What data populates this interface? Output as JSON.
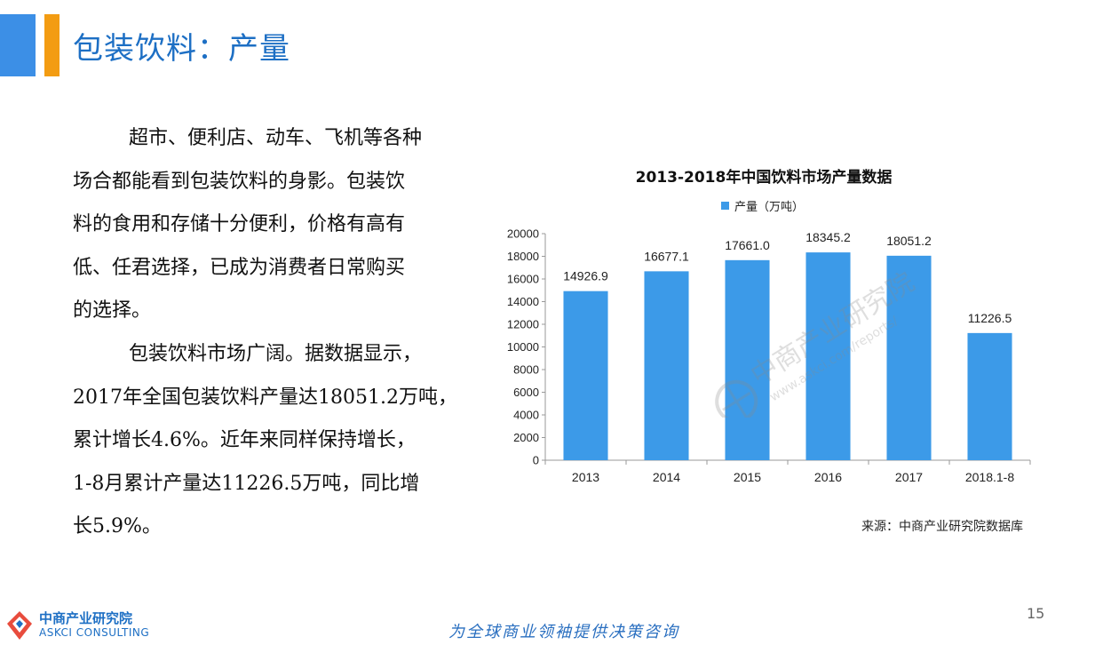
{
  "header": {
    "title": "包装饮料：产量"
  },
  "body": {
    "paragraph1_lines": [
      "超市、便利店、动车、飞机等各种",
      "场合都能看到包装饮料的身影。包装饮",
      "料的食用和存储十分便利，价格有高有",
      "低、任君选择，已成为消费者日常购买",
      "的选择。"
    ],
    "paragraph2_lines": [
      "包装饮料市场广阔。据数据显示，",
      "2017年全国包装饮料产量达18051.2万吨，",
      "累计增长4.6%。近年来同样保持增长，",
      "1-8月累计产量达11226.5万吨，同比增",
      "长5.9%。"
    ]
  },
  "chart_data": {
    "type": "bar",
    "title": "2013-2018年中国饮料市场产量数据",
    "categories": [
      "2013",
      "2014",
      "2015",
      "2016",
      "2017",
      "2018.1-8"
    ],
    "series": [
      {
        "name": "产量（万吨）",
        "values": [
          14926.9,
          16677.1,
          17661.0,
          18345.2,
          18051.2,
          11226.5
        ],
        "labels": [
          "14926.9",
          "16677.1",
          "17661.0",
          "18345.2",
          "18051.2",
          "11226.5"
        ]
      }
    ],
    "ylim": [
      0,
      20000
    ],
    "yticks": [
      0,
      2000,
      4000,
      6000,
      8000,
      10000,
      12000,
      14000,
      16000,
      18000,
      20000
    ],
    "legend": "top",
    "grid": false,
    "bar_color": "#3c9ae8"
  },
  "source": "来源：中商产业研究院数据库",
  "footer": {
    "page_number": "15",
    "slogan": "为全球商业领袖提供决策咨询",
    "logo_cn": "中商产业研究院",
    "logo_en": "ASKCI CONSULTING"
  },
  "watermark": {
    "cn": "中商产业研究院",
    "url": "www.askci.com/reports/"
  }
}
